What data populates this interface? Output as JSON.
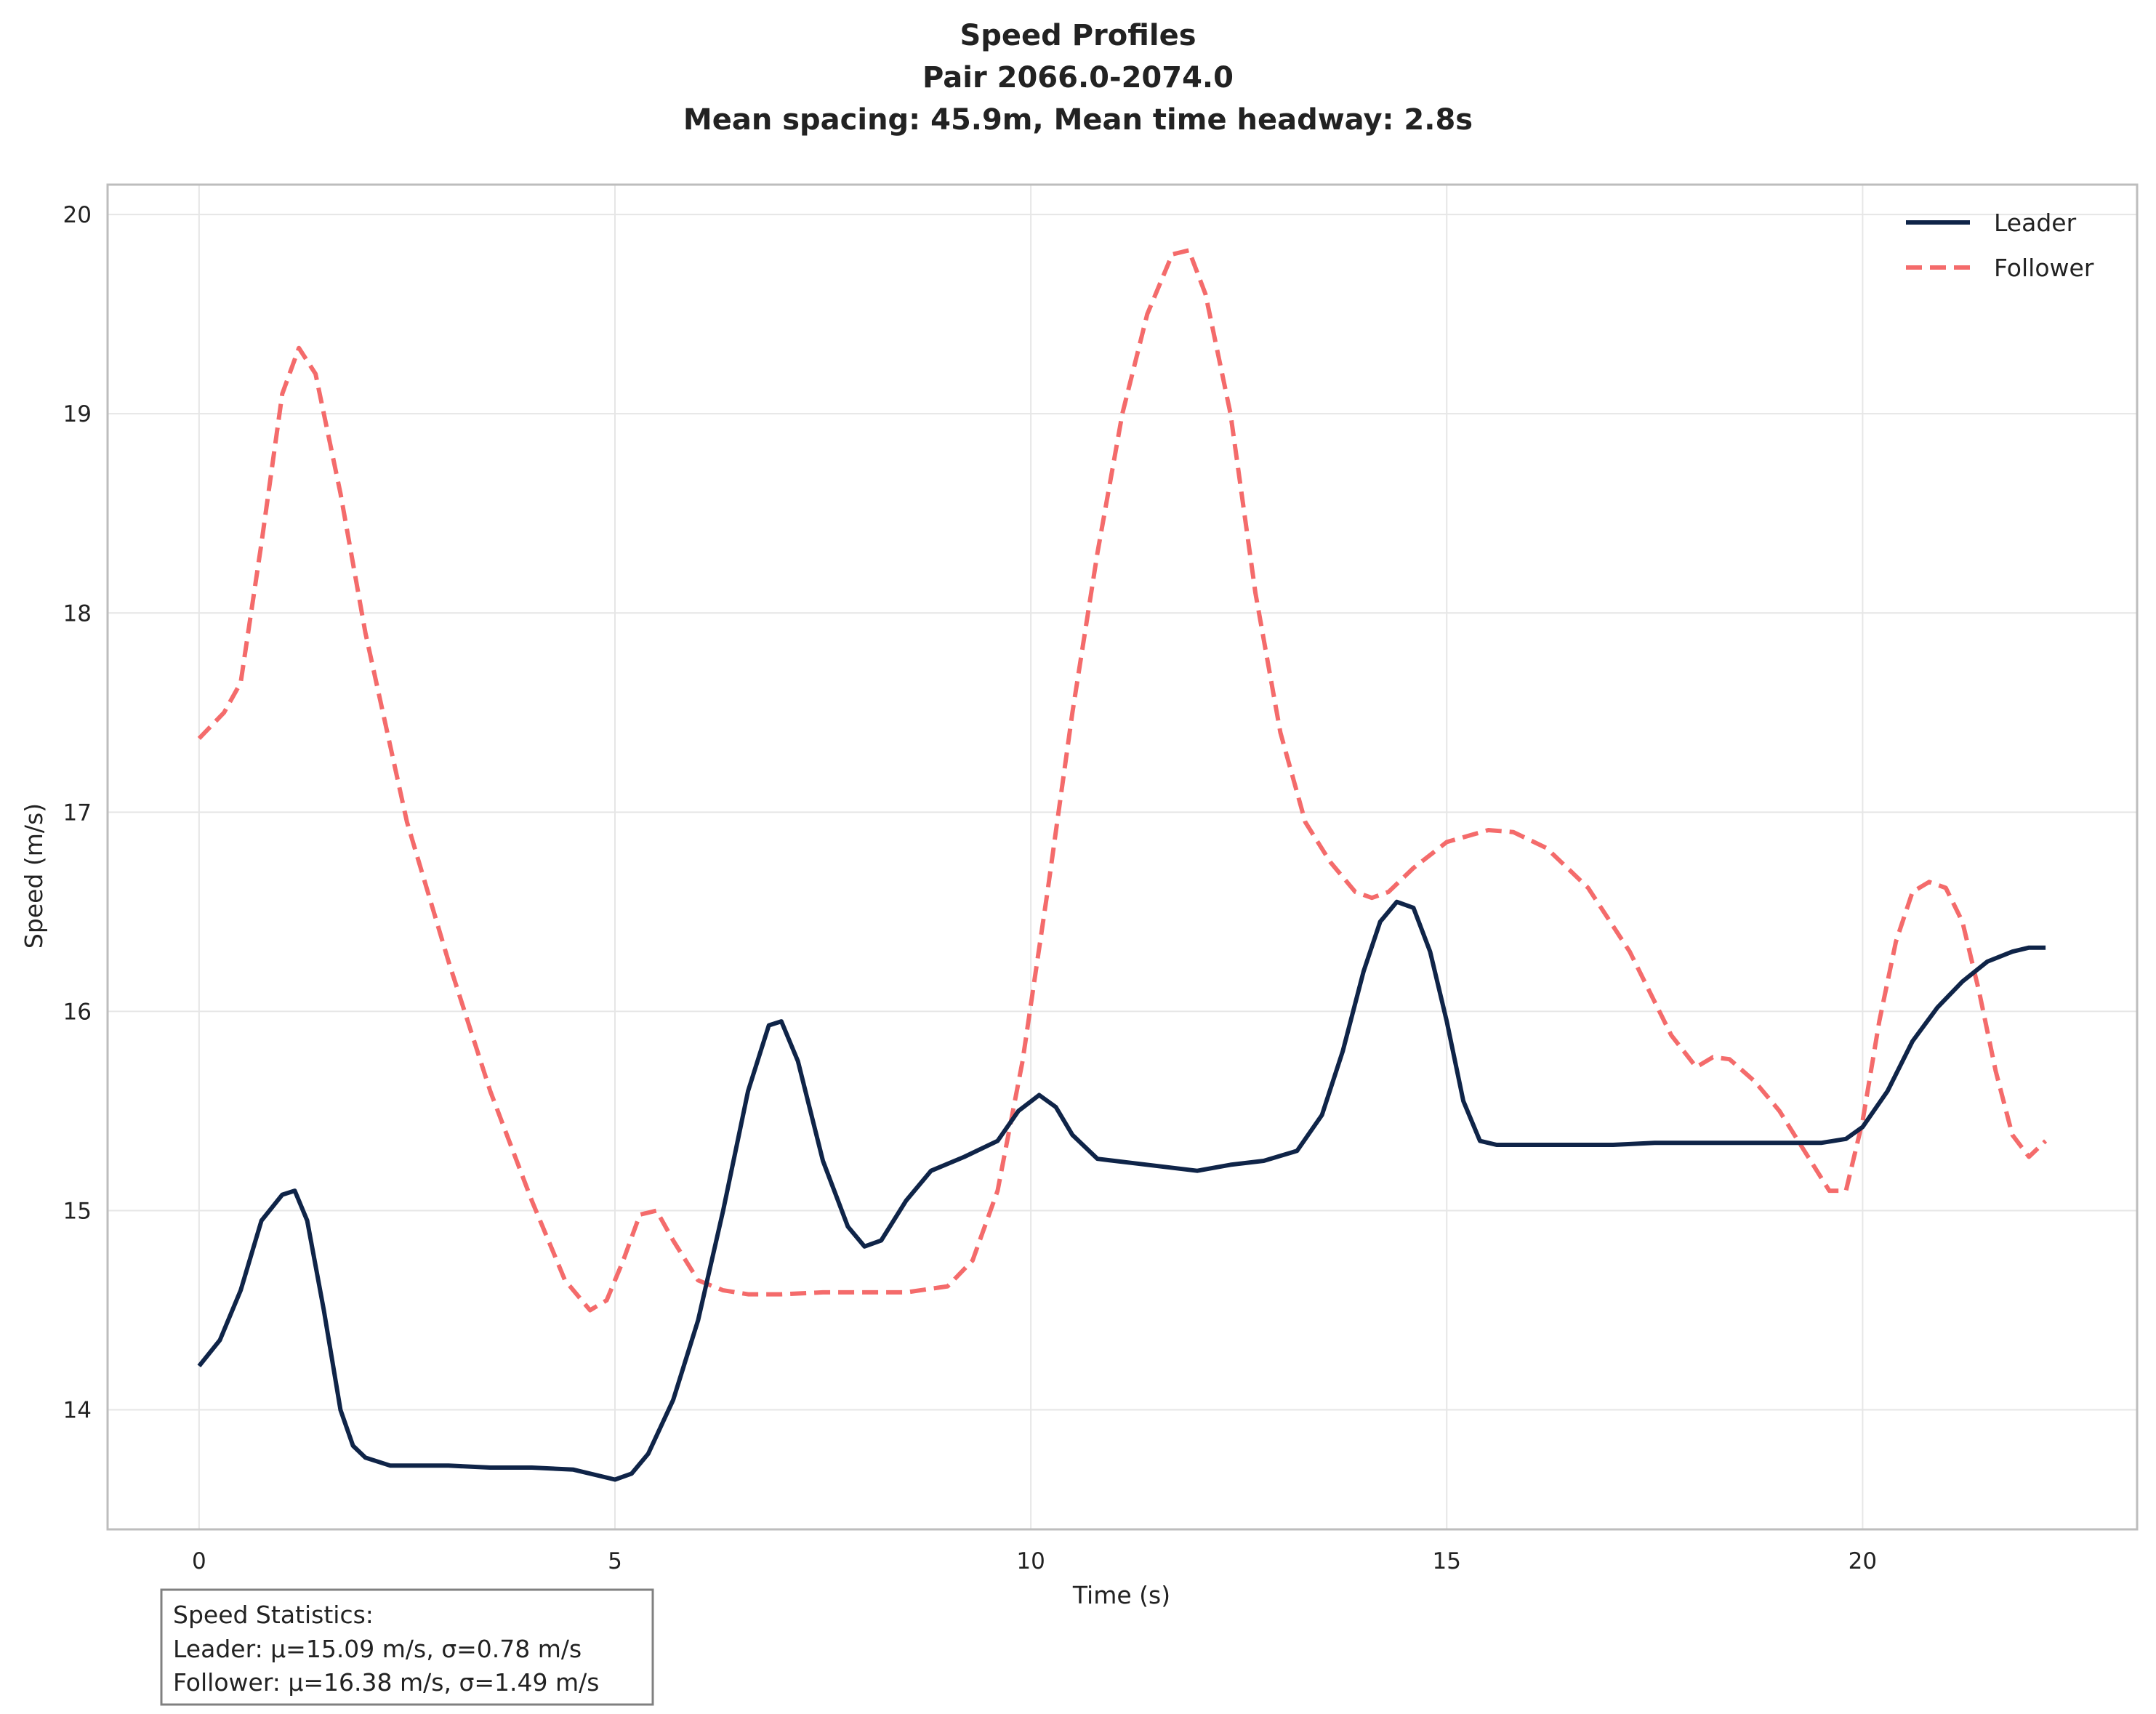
{
  "chart_data": {
    "type": "line",
    "title_lines": [
      "Speed Profiles",
      "Pair 2066.0-2074.0",
      "Mean spacing: 45.9m, Mean time headway: 2.8s"
    ],
    "xlabel": "Time (s)",
    "ylabel": "Speed (m/s)",
    "xlim": [
      -1.1,
      23.3
    ],
    "ylim": [
      13.4,
      20.15
    ],
    "xticks": [
      0,
      5,
      10,
      15,
      20
    ],
    "yticks": [
      14,
      15,
      16,
      17,
      18,
      19,
      20
    ],
    "grid": true,
    "legend": {
      "placement": "top-right",
      "entries": [
        "Leader",
        "Follower"
      ]
    },
    "colors": {
      "leader": "#0f2448",
      "follower": "#f46b6b"
    },
    "series": [
      {
        "name": "Leader",
        "style": "solid",
        "x": [
          0,
          0.25,
          0.5,
          0.75,
          1.0,
          1.15,
          1.3,
          1.5,
          1.7,
          1.85,
          2.0,
          2.3,
          3.0,
          3.5,
          4.0,
          4.5,
          4.8,
          5.0,
          5.2,
          5.4,
          5.7,
          6.0,
          6.3,
          6.6,
          6.85,
          7.0,
          7.2,
          7.5,
          7.8,
          8.0,
          8.2,
          8.5,
          8.8,
          9.2,
          9.6,
          9.85,
          10.1,
          10.3,
          10.5,
          10.8,
          11.2,
          11.6,
          12.0,
          12.4,
          12.8,
          13.2,
          13.5,
          13.75,
          14.0,
          14.2,
          14.4,
          14.6,
          14.8,
          15.0,
          15.2,
          15.4,
          15.6,
          16.0,
          16.5,
          17.0,
          17.5,
          18.0,
          18.5,
          19.0,
          19.5,
          19.8,
          20.0,
          20.3,
          20.6,
          20.9,
          21.2,
          21.5,
          21.8,
          22.0,
          22.2
        ],
        "y": [
          14.22,
          14.35,
          14.6,
          14.95,
          15.08,
          15.1,
          14.95,
          14.5,
          14.0,
          13.82,
          13.76,
          13.72,
          13.72,
          13.71,
          13.71,
          13.7,
          13.67,
          13.65,
          13.68,
          13.78,
          14.05,
          14.45,
          15.0,
          15.6,
          15.93,
          15.95,
          15.75,
          15.25,
          14.92,
          14.82,
          14.85,
          15.05,
          15.2,
          15.27,
          15.35,
          15.5,
          15.58,
          15.52,
          15.38,
          15.26,
          15.24,
          15.22,
          15.2,
          15.23,
          15.25,
          15.3,
          15.48,
          15.8,
          16.2,
          16.45,
          16.55,
          16.52,
          16.3,
          15.95,
          15.55,
          15.35,
          15.33,
          15.33,
          15.33,
          15.33,
          15.34,
          15.34,
          15.34,
          15.34,
          15.34,
          15.36,
          15.42,
          15.6,
          15.85,
          16.02,
          16.15,
          16.25,
          16.3,
          16.32,
          16.32
        ]
      },
      {
        "name": "Follower",
        "style": "dashed",
        "x": [
          0,
          0.3,
          0.5,
          0.75,
          1.0,
          1.2,
          1.4,
          1.7,
          2.0,
          2.5,
          3.0,
          3.5,
          4.0,
          4.4,
          4.7,
          4.9,
          5.1,
          5.3,
          5.5,
          5.7,
          6.0,
          6.3,
          6.6,
          7.0,
          7.5,
          8.0,
          8.5,
          9.0,
          9.3,
          9.6,
          9.9,
          10.2,
          10.5,
          10.8,
          11.1,
          11.4,
          11.7,
          11.9,
          12.1,
          12.4,
          12.7,
          13.0,
          13.3,
          13.6,
          13.9,
          14.1,
          14.3,
          14.6,
          15.0,
          15.5,
          15.8,
          16.2,
          16.7,
          17.2,
          17.7,
          18.0,
          18.2,
          18.4,
          18.7,
          19.0,
          19.3,
          19.6,
          19.8,
          20.0,
          20.2,
          20.4,
          20.6,
          20.8,
          21.0,
          21.2,
          21.4,
          21.6,
          21.8,
          22.0,
          22.2
        ],
        "y": [
          17.37,
          17.5,
          17.65,
          18.35,
          19.1,
          19.33,
          19.2,
          18.6,
          17.9,
          16.95,
          16.25,
          15.6,
          15.05,
          14.65,
          14.5,
          14.55,
          14.75,
          14.98,
          15.0,
          14.85,
          14.65,
          14.6,
          14.58,
          14.58,
          14.59,
          14.59,
          14.59,
          14.62,
          14.75,
          15.1,
          15.75,
          16.6,
          17.5,
          18.3,
          19.0,
          19.5,
          19.8,
          19.82,
          19.6,
          19.0,
          18.1,
          17.4,
          16.95,
          16.75,
          16.6,
          16.57,
          16.6,
          16.72,
          16.85,
          16.91,
          16.9,
          16.82,
          16.62,
          16.3,
          15.88,
          15.72,
          15.77,
          15.76,
          15.65,
          15.5,
          15.3,
          15.1,
          15.1,
          15.45,
          15.95,
          16.35,
          16.6,
          16.65,
          16.62,
          16.45,
          16.1,
          15.7,
          15.38,
          15.27,
          15.35
        ]
      }
    ],
    "stats_box": {
      "heading": "Speed Statistics:",
      "leader_line": "Leader: μ=15.09 m/s, σ=0.78 m/s",
      "follower_line": "Follower: μ=16.38 m/s, σ=1.49 m/s"
    }
  }
}
